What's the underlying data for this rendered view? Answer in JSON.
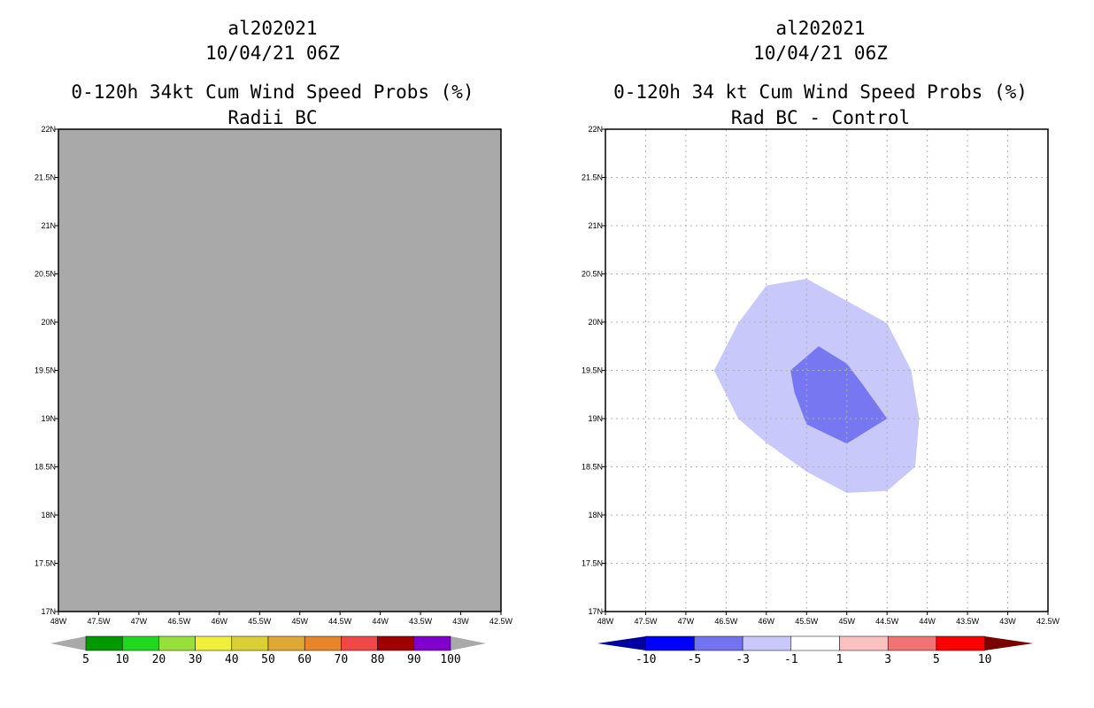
{
  "chart_data": [
    {
      "type": "map",
      "storm_id": "al202021",
      "datetime": "10/04/21 06Z",
      "title": "0-120h 34kt Cum Wind Speed Probs (%)",
      "subtitle": "Radii BC",
      "xlim": [
        -48,
        -42.5
      ],
      "ylim": [
        17,
        22
      ],
      "x_ticks": [
        "48W",
        "47.5W",
        "47W",
        "46.5W",
        "46W",
        "45.5W",
        "45W",
        "44.5W",
        "44W",
        "43.5W",
        "43W",
        "42.5W"
      ],
      "y_ticks": [
        "17N",
        "17.5N",
        "18N",
        "18.5N",
        "19N",
        "19.5N",
        "20N",
        "20.5N",
        "21N",
        "21.5N",
        "22N"
      ],
      "field": "no data (uniform grey)",
      "field_color": "#a9a9a9",
      "colorbar": {
        "labels": [
          "5",
          "10",
          "20",
          "30",
          "40",
          "50",
          "60",
          "70",
          "80",
          "90",
          "100"
        ],
        "colors": [
          "#009900",
          "#1fd81f",
          "#97e03a",
          "#f0f03a",
          "#dccf34",
          "#dfa733",
          "#e8842c",
          "#f04747",
          "#a00000",
          "#8000d0"
        ],
        "end_color": "#a9a9a9"
      }
    },
    {
      "type": "map",
      "storm_id": "al202021",
      "datetime": "10/04/21 06Z",
      "title": "0-120h 34 kt Cum Wind Speed Probs (%)",
      "subtitle": "Rad BC - Control",
      "xlim": [
        -48,
        -42.5
      ],
      "ylim": [
        17,
        22
      ],
      "x_ticks": [
        "48W",
        "47.5W",
        "47W",
        "46.5W",
        "46W",
        "45.5W",
        "45W",
        "44.5W",
        "44W",
        "43.5W",
        "43W",
        "42.5W"
      ],
      "y_ticks": [
        "17N",
        "17.5N",
        "18N",
        "18.5N",
        "19N",
        "19.5N",
        "20N",
        "20.5N",
        "21N",
        "21.5N",
        "22N"
      ],
      "contours": [
        {
          "level": "-3 to -1",
          "color": "#c8c8fb",
          "points": [
            [
              -46.35,
              19.99
            ],
            [
              -46.0,
              20.38
            ],
            [
              -45.5,
              20.45
            ],
            [
              -45.0,
              20.22
            ],
            [
              -44.5,
              19.99
            ],
            [
              -44.2,
              19.5
            ],
            [
              -44.1,
              19.0
            ],
            [
              -44.15,
              18.5
            ],
            [
              -44.5,
              18.25
            ],
            [
              -45.0,
              18.23
            ],
            [
              -45.5,
              18.45
            ],
            [
              -46.0,
              18.75
            ],
            [
              -46.35,
              19.0
            ],
            [
              -46.65,
              19.5
            ]
          ]
        },
        {
          "level": "-5 to -3",
          "color": "#7777f2",
          "points": [
            [
              -45.35,
              19.75
            ],
            [
              -45.0,
              19.57
            ],
            [
              -44.8,
              19.35
            ],
            [
              -44.5,
              19.0
            ],
            [
              -45.0,
              18.74
            ],
            [
              -45.5,
              18.94
            ],
            [
              -45.65,
              19.27
            ],
            [
              -45.7,
              19.5
            ]
          ]
        }
      ],
      "colorbar": {
        "labels": [
          "-10",
          "-5",
          "-3",
          "-1",
          "1",
          "3",
          "5",
          "10"
        ],
        "colors": [
          "#0000a0",
          "#0000ff",
          "#7373f2",
          "#c8c8fb",
          "#ffffff",
          "#fbc1c1",
          "#f27373",
          "#ff0000",
          "#7a0000"
        ]
      }
    }
  ]
}
